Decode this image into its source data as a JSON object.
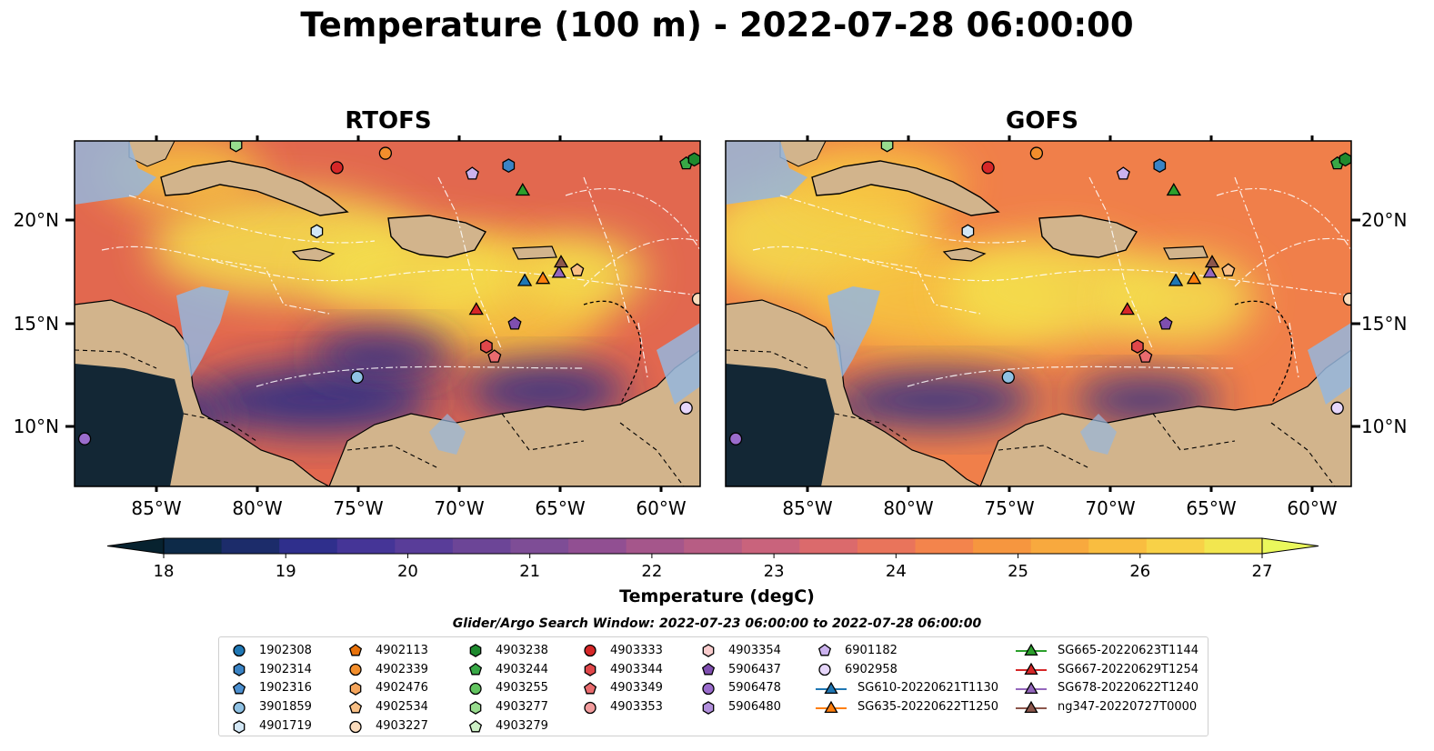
{
  "title": "Temperature (100 m) - 2022-07-28 06:00:00",
  "panels": [
    {
      "name": "rtofs",
      "title": "RTOFS",
      "warm_blobs": [
        [
          315,
          270,
          150,
          60
        ],
        [
          560,
          330,
          110,
          70
        ],
        [
          460,
          300,
          120,
          50
        ],
        [
          200,
          190,
          90,
          40
        ],
        [
          640,
          300,
          70,
          40
        ]
      ],
      "cold_blobs": [
        [
          350,
          440,
          130,
          38
        ],
        [
          160,
          460,
          90,
          40
        ],
        [
          600,
          430,
          90,
          30
        ],
        [
          420,
          390,
          80,
          25
        ]
      ],
      "base_color": "#e2684f"
    },
    {
      "name": "gofs",
      "title": "GOFS",
      "warm_blobs": [
        [
          900,
          260,
          130,
          70
        ],
        [
          1030,
          330,
          140,
          60
        ],
        [
          1160,
          320,
          120,
          60
        ],
        [
          960,
          200,
          100,
          40
        ],
        [
          1300,
          330,
          80,
          50
        ]
      ],
      "cold_blobs": [
        [
          1030,
          440,
          110,
          30
        ],
        [
          1260,
          440,
          80,
          25
        ],
        [
          870,
          470,
          70,
          35
        ]
      ],
      "base_color": "#f07f4a"
    }
  ],
  "lat_labels": [
    "20°N",
    "15°N",
    "10°N"
  ],
  "lon_labels": [
    "85°W",
    "80°W",
    "75°W",
    "70°W",
    "65°W",
    "60°W"
  ],
  "colorbar": {
    "label": "Temperature (degC)",
    "ticks": [
      "18",
      "19",
      "20",
      "21",
      "22",
      "23",
      "24",
      "25",
      "26",
      "27"
    ],
    "colors": [
      "#07222f",
      "#0d2a48",
      "#1c2c6a",
      "#2f2f8c",
      "#453597",
      "#593d99",
      "#6c4597",
      "#7e4d96",
      "#914f92",
      "#a5568b",
      "#b75d84",
      "#c9637c",
      "#db6a6c",
      "#e9745b",
      "#f3844c",
      "#f6963f",
      "#f8a93e",
      "#f9bd40",
      "#f8d147",
      "#f2e64f",
      "#eaf85c"
    ]
  },
  "legend": {
    "title": "Glider/Argo Search Window: 2022-07-23 06:00:00 to 2022-07-28 06:00:00",
    "columns": [
      [
        {
          "label": "1902308",
          "marker": "circle",
          "color": "#1f77b4"
        },
        {
          "label": "1902314",
          "marker": "hexagon",
          "color": "#3a83c4"
        },
        {
          "label": "1902316",
          "marker": "pentagon",
          "color": "#4c8fcf"
        },
        {
          "label": "3901859",
          "marker": "circle",
          "color": "#8fc1e3"
        },
        {
          "label": "4901719",
          "marker": "hexagon",
          "color": "#d3e7f5"
        }
      ],
      [
        {
          "label": "4902113",
          "marker": "pentagon",
          "color": "#e8710a"
        },
        {
          "label": "4902339",
          "marker": "circle",
          "color": "#f28e2c"
        },
        {
          "label": "4902476",
          "marker": "hexagon",
          "color": "#f5a55c"
        },
        {
          "label": "4902534",
          "marker": "pentagon",
          "color": "#f8bf85"
        },
        {
          "label": "4903227",
          "marker": "circle",
          "color": "#fbdcbd"
        }
      ],
      [
        {
          "label": "4903238",
          "marker": "hexagon",
          "color": "#1e8a2e"
        },
        {
          "label": "4903244",
          "marker": "pentagon",
          "color": "#38a846"
        },
        {
          "label": "4903255",
          "marker": "circle",
          "color": "#62c45f"
        },
        {
          "label": "4903277",
          "marker": "hexagon",
          "color": "#98dc8e"
        },
        {
          "label": "4903279",
          "marker": "pentagon",
          "color": "#cdf0c6"
        }
      ],
      [
        {
          "label": "4903333",
          "marker": "circle",
          "color": "#d62728"
        },
        {
          "label": "4903344",
          "marker": "hexagon",
          "color": "#e0474a"
        },
        {
          "label": "4903349",
          "marker": "pentagon",
          "color": "#e96b6e"
        },
        {
          "label": "4903353",
          "marker": "circle",
          "color": "#f29c9d"
        }
      ],
      [
        {
          "label": "4903354",
          "marker": "hexagon",
          "color": "#f9cccd"
        },
        {
          "label": "5906437",
          "marker": "pentagon",
          "color": "#7f4fb0"
        },
        {
          "label": "5906478",
          "marker": "circle",
          "color": "#9a6ccc"
        },
        {
          "label": "5906480",
          "marker": "hexagon",
          "color": "#b18fdc"
        }
      ],
      [
        {
          "label": "6901182",
          "marker": "pentagon",
          "color": "#cbb2ee"
        },
        {
          "label": "6902958",
          "marker": "circle",
          "color": "#e6d6fa"
        },
        {
          "label": "SG610-20220621T1130",
          "marker": "triangle",
          "color": "#1f77b4"
        },
        {
          "label": "SG635-20220622T1250",
          "marker": "triangle",
          "color": "#ff7f0e"
        }
      ],
      [
        {
          "label": "SG665-20220623T1144",
          "marker": "triangle",
          "color": "#2ca02c"
        },
        {
          "label": "SG667-20220629T1254",
          "marker": "triangle",
          "color": "#d62728"
        },
        {
          "label": "SG678-20220622T1240",
          "marker": "triangle",
          "color": "#9467bd"
        },
        {
          "label": "ng347-20220727T0000",
          "marker": "triangle",
          "color": "#8c564b"
        }
      ]
    ]
  },
  "stations": [
    {
      "id": "4903333",
      "marker": "circle",
      "color": "#d62728",
      "lon": -76.0,
      "lat": 22.6
    },
    {
      "id": "4902339",
      "marker": "circle",
      "color": "#f28e2c",
      "lon": -73.6,
      "lat": 23.3
    },
    {
      "id": "4903277",
      "marker": "hexagon",
      "color": "#98dc8e",
      "lon": -81.0,
      "lat": 23.7
    },
    {
      "id": "6901182",
      "marker": "pentagon",
      "color": "#cbb2ee",
      "lon": -69.3,
      "lat": 22.3
    },
    {
      "id": "1902314",
      "marker": "hexagon",
      "color": "#3a83c4",
      "lon": -67.5,
      "lat": 22.7
    },
    {
      "id": "4903244",
      "marker": "pentagon",
      "color": "#38a846",
      "lon": -58.7,
      "lat": 22.8
    },
    {
      "id": "4903238",
      "marker": "hexagon",
      "color": "#1e8a2e",
      "lon": -58.3,
      "lat": 23.0
    },
    {
      "id": "SG665-20220623T1144",
      "marker": "triangle",
      "color": "#2ca02c",
      "lon": -66.8,
      "lat": 21.5
    },
    {
      "id": "4901719",
      "marker": "hexagon",
      "color": "#d3e7f5",
      "lon": -77.0,
      "lat": 19.5
    },
    {
      "id": "SG610-20220621T1130",
      "marker": "triangle",
      "color": "#1f77b4",
      "lon": -66.7,
      "lat": 17.1
    },
    {
      "id": "SG635-20220622T1250",
      "marker": "triangle",
      "color": "#ff7f0e",
      "lon": -65.8,
      "lat": 17.2
    },
    {
      "id": "SG678-20220622T1240",
      "marker": "triangle",
      "color": "#9467bd",
      "lon": -65.0,
      "lat": 17.5
    },
    {
      "id": "ng347-20220727T0000",
      "marker": "triangle",
      "color": "#8c564b",
      "lon": -64.9,
      "lat": 18.0
    },
    {
      "id": "4902534",
      "marker": "pentagon",
      "color": "#f8bf85",
      "lon": -64.1,
      "lat": 17.6
    },
    {
      "id": "SG667-20220629T1254",
      "marker": "triangle",
      "color": "#d62728",
      "lon": -69.1,
      "lat": 15.7
    },
    {
      "id": "5906437",
      "marker": "pentagon",
      "color": "#7f4fb0",
      "lon": -67.2,
      "lat": 15.0
    },
    {
      "id": "4903344",
      "marker": "hexagon",
      "color": "#e0474a",
      "lon": -68.6,
      "lat": 13.9
    },
    {
      "id": "4903349",
      "marker": "pentagon",
      "color": "#e96b6e",
      "lon": -68.2,
      "lat": 13.4
    },
    {
      "id": "3901859",
      "marker": "circle",
      "color": "#8fc1e3",
      "lon": -75.0,
      "lat": 12.4
    },
    {
      "id": "6902958",
      "marker": "circle",
      "color": "#e6d6fa",
      "lon": -58.7,
      "lat": 10.9
    },
    {
      "id": "5906478",
      "marker": "circle",
      "color": "#9a6ccc",
      "lon": -88.5,
      "lat": 9.4
    },
    {
      "id": "4903227",
      "marker": "circle",
      "color": "#fbdcbd",
      "lon": -58.1,
      "lat": 16.2
    }
  ]
}
